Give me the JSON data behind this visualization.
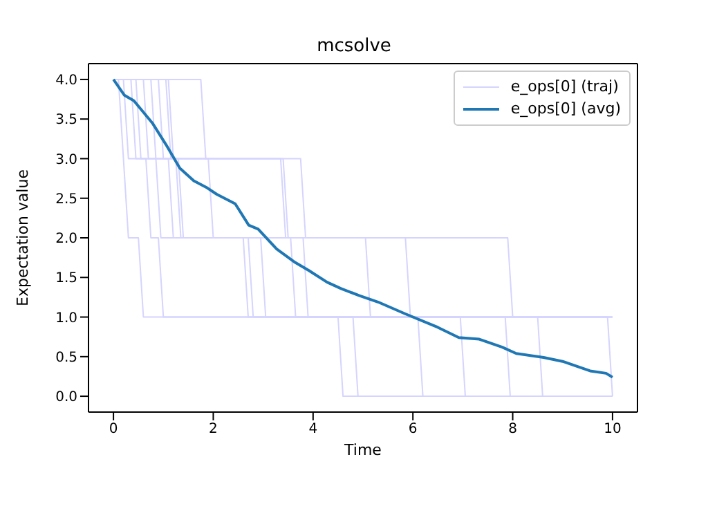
{
  "chart_data": {
    "type": "line",
    "title": "mcsolve",
    "xlabel": "Time",
    "ylabel": "Expectation value",
    "xlim": [
      -0.5,
      10.5
    ],
    "xticks": [
      0,
      2,
      4,
      6,
      8,
      10
    ],
    "ylim": [
      -0.2,
      4.2
    ],
    "yticks": [
      {
        "value": 0,
        "label": "0.0"
      },
      {
        "value": 0.5,
        "label": "0.5"
      },
      {
        "value": 1,
        "label": "1.0"
      },
      {
        "value": 1.5,
        "label": "1.5"
      },
      {
        "value": 2,
        "label": "2.0"
      },
      {
        "value": 2.5,
        "label": "2.5"
      },
      {
        "value": 3,
        "label": "3.0"
      },
      {
        "value": 3.5,
        "label": "3.5"
      },
      {
        "value": 4,
        "label": "4.0"
      }
    ],
    "legend": "top right",
    "marker": "none",
    "line_style": "solid",
    "series": [
      {
        "name": "e_ops[0] (traj)",
        "color": "#d4d4ff",
        "x": [
          0,
          0.1,
          0.2,
          0.3,
          0.4,
          0.5,
          0.6,
          4.5,
          4.6,
          10
        ],
        "values": [
          4,
          4,
          3,
          2,
          2,
          2,
          1,
          1,
          0,
          0
        ]
      },
      {
        "color": "#d4d4ff",
        "x": [
          0,
          0.2,
          0.3,
          3.75,
          3.85,
          5.05,
          5.15,
          9.9,
          10
        ],
        "values": [
          4,
          4,
          3,
          3,
          2,
          2,
          1,
          1,
          0
        ]
      },
      {
        "color": "#d4d4ff",
        "x": [
          0,
          0.35,
          0.45,
          0.65,
          0.75,
          0.9,
          1.0,
          4.8,
          4.9,
          10
        ],
        "values": [
          4,
          4,
          3,
          3,
          2,
          2,
          1,
          1,
          0,
          0
        ]
      },
      {
        "color": "#d4d4ff",
        "x": [
          0,
          0.45,
          0.55,
          1.1,
          1.2,
          2.6,
          2.7,
          6.1,
          6.2,
          10
        ],
        "values": [
          4,
          4,
          3,
          3,
          2,
          2,
          1,
          1,
          0,
          0
        ]
      },
      {
        "color": "#d4d4ff",
        "x": [
          0,
          0.75,
          0.85,
          1.3,
          1.4,
          2.95,
          3.05,
          6.95,
          7.05,
          10
        ],
        "values": [
          4,
          4,
          3,
          3,
          2,
          2,
          1,
          1,
          0,
          0
        ]
      },
      {
        "color": "#d4d4ff",
        "x": [
          0,
          0.9,
          1.0,
          1.9,
          2.0,
          3.55,
          3.65,
          7.85,
          7.95,
          10
        ],
        "values": [
          4,
          4,
          3,
          3,
          2,
          2,
          1,
          1,
          0,
          0
        ]
      },
      {
        "color": "#d4d4ff",
        "x": [
          0,
          1.1,
          1.2,
          3.35,
          3.45,
          5.85,
          5.95,
          8.5,
          8.6,
          10
        ],
        "values": [
          4,
          4,
          3,
          3,
          2,
          2,
          1,
          1,
          0,
          0
        ]
      },
      {
        "color": "#d4d4ff",
        "x": [
          0,
          1.75,
          1.85,
          3.4,
          3.5,
          7.9,
          8.0,
          10
        ],
        "values": [
          4,
          4,
          3,
          3,
          2,
          2,
          1,
          1
        ]
      },
      {
        "color": "#d4d4ff",
        "x": [
          0,
          1.05,
          1.15,
          1.25,
          1.35,
          2.7,
          2.8,
          10
        ],
        "values": [
          4,
          4,
          3,
          3,
          2,
          2,
          1,
          1
        ]
      },
      {
        "color": "#d4d4ff",
        "x": [
          0,
          0.6,
          0.7,
          0.85,
          0.95,
          3.8,
          3.9,
          10
        ],
        "values": [
          4,
          4,
          3,
          3,
          2,
          2,
          1,
          1
        ]
      },
      {
        "name": "e_ops[0] (avg)",
        "color": "#1f77b4",
        "x": [
          0,
          0.22,
          0.41,
          0.78,
          1.05,
          1.33,
          1.61,
          1.88,
          2.07,
          2.44,
          2.71,
          2.9,
          3.27,
          3.64,
          3.91,
          4.28,
          4.56,
          4.93,
          5.3,
          5.85,
          6.5,
          6.92,
          7.33,
          7.79,
          8.07,
          8.62,
          9.0,
          9.55,
          9.87,
          10.0
        ],
        "values": [
          4.0,
          3.8,
          3.73,
          3.45,
          3.18,
          2.88,
          2.72,
          2.63,
          2.55,
          2.43,
          2.16,
          2.11,
          1.86,
          1.69,
          1.59,
          1.44,
          1.36,
          1.27,
          1.19,
          1.04,
          0.87,
          0.74,
          0.72,
          0.62,
          0.54,
          0.49,
          0.44,
          0.32,
          0.29,
          0.24
        ]
      }
    ]
  }
}
